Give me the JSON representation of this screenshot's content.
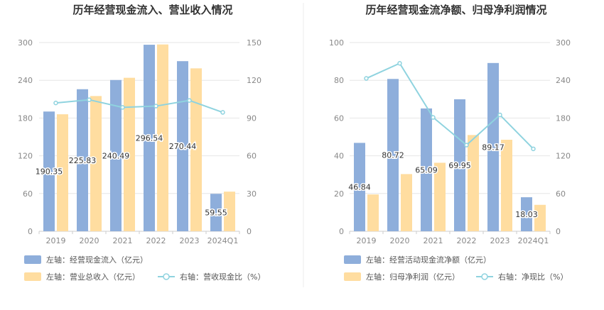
{
  "colors": {
    "bar_primary": "#8eaedb",
    "bar_secondary": "#ffdda0",
    "line": "#8fd3df",
    "grid": "#e6e6e6",
    "axis_text": "#888888",
    "title": "#333333",
    "divider": "#eeeeee"
  },
  "chart_data": [
    {
      "type": "bar",
      "title": "历年经营现金流入、营业收入情况",
      "categories": [
        "2019",
        "2020",
        "2021",
        "2022",
        "2023",
        "2024Q1"
      ],
      "ylim_left": [
        0,
        300
      ],
      "yticks_left": [
        "0",
        "60",
        "120",
        "180",
        "240",
        "300"
      ],
      "ylim_right": [
        0,
        150
      ],
      "yticks_right": [
        "0",
        "30",
        "60",
        "90",
        "120",
        "150"
      ],
      "series": [
        {
          "name": "左轴：经营现金流入（亿元）",
          "kind": "bar",
          "axis": "left",
          "color": "#8eaedb",
          "values": [
            190.35,
            225.83,
            240.49,
            296.54,
            270.44,
            59.55
          ],
          "labels": [
            "190.35",
            "225.83",
            "240.49",
            "296.54",
            "270.44",
            "59.55"
          ]
        },
        {
          "name": "左轴：营业总收入（亿元）",
          "kind": "bar",
          "axis": "left",
          "color": "#ffdda0",
          "values": [
            186,
            215,
            244,
            297,
            259,
            63
          ]
        },
        {
          "name": "右轴：营收现金比（%）",
          "kind": "line",
          "axis": "right",
          "color": "#8fd3df",
          "values": [
            102,
            104.5,
            98.5,
            99.5,
            104,
            94.5
          ]
        }
      ],
      "legend": [
        {
          "label": "左轴：经营现金流入（亿元）",
          "marker": "bar",
          "color": "#8eaedb"
        },
        {
          "label": "左轴：营业总收入（亿元）",
          "marker": "bar",
          "color": "#ffdda0"
        },
        {
          "label": "右轴：营收现金比（%）",
          "marker": "line",
          "color": "#8fd3df"
        }
      ],
      "legend_position": "bottom"
    },
    {
      "type": "bar",
      "title": "历年经营现金流净额、归母净利润情况",
      "categories": [
        "2019",
        "2020",
        "2021",
        "2022",
        "2023",
        "2024Q1"
      ],
      "ylim_left": [
        0,
        100
      ],
      "yticks_left": [
        "0",
        "20",
        "40",
        "60",
        "80",
        "100"
      ],
      "ylim_right": [
        0,
        300
      ],
      "yticks_right": [
        "0",
        "60",
        "120",
        "180",
        "240",
        "300"
      ],
      "series": [
        {
          "name": "左轴：经营活动现金流净额（亿元）",
          "kind": "bar",
          "axis": "left",
          "color": "#8eaedb",
          "values": [
            46.84,
            80.72,
            65.09,
            69.95,
            89.17,
            18.03
          ],
          "labels": [
            "46.84",
            "80.72",
            "65.09",
            "69.95",
            "89.17",
            "18.03"
          ]
        },
        {
          "name": "左轴：归母净利润（亿元）",
          "kind": "bar",
          "axis": "left",
          "color": "#ffdda0",
          "values": [
            19.5,
            30.3,
            36.3,
            51,
            48.5,
            14
          ]
        },
        {
          "name": "右轴：净现比（%）",
          "kind": "line",
          "axis": "right",
          "color": "#8fd3df",
          "values": [
            243,
            267,
            181,
            137,
            185,
            131
          ]
        }
      ],
      "legend": [
        {
          "label": "左轴：经营活动现金流净额（亿元）",
          "marker": "bar",
          "color": "#8eaedb"
        },
        {
          "label": "左轴：归母净利润（亿元）",
          "marker": "bar",
          "color": "#ffdda0"
        },
        {
          "label": "右轴：净现比（%）",
          "marker": "line",
          "color": "#8fd3df"
        }
      ],
      "legend_position": "bottom"
    }
  ]
}
